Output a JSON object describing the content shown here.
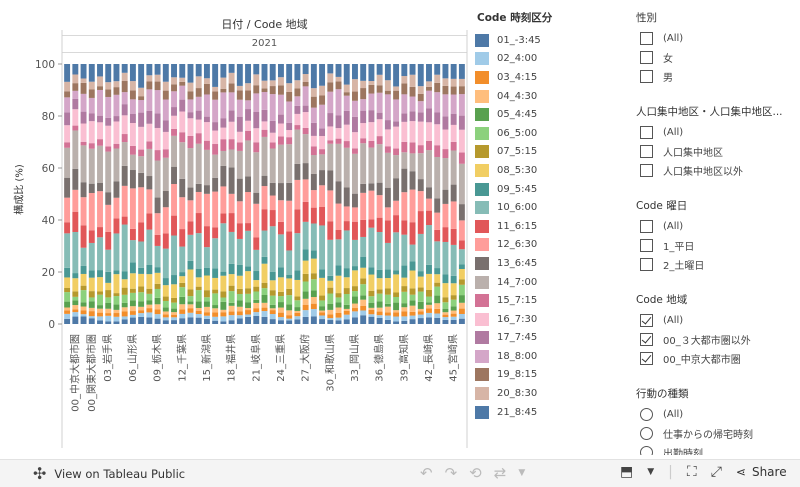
{
  "chart_data": {
    "type": "bar",
    "stacked": true,
    "title": "日付 / Code 地域",
    "year_label": "2021",
    "ylabel": "構成比 (%)",
    "ylim": [
      0,
      100
    ],
    "yticks": [
      0,
      20,
      40,
      60,
      80,
      100
    ],
    "bar_count": 49,
    "categories": [
      "00_中京大都市圏",
      "00_関東大都市圏",
      "03_岩手県",
      "06_山形県",
      "09_栃木県",
      "12_千葉県",
      "15_新潟県",
      "18_福井県",
      "21_岐阜県",
      "24_三重県",
      "27_大阪府",
      "30_和歌山県",
      "33_岡山県",
      "36_徳島県",
      "39_高知県",
      "42_長崎県",
      "45_宮崎県"
    ],
    "label_bar_index": [
      1,
      3,
      5,
      8,
      11,
      14,
      17,
      20,
      23,
      26,
      29,
      32,
      35,
      38,
      41,
      44,
      47
    ],
    "series_names": [
      "01_-3:45",
      "02_4:00",
      "03_4:15",
      "04_4:30",
      "05_4:45",
      "06_5:00",
      "07_5:15",
      "08_5:30",
      "09_5:45",
      "10_6:00",
      "11_6:15",
      "12_6:30",
      "13_6:45",
      "14_7:00",
      "15_7:15",
      "16_7:30",
      "17_7:45",
      "18_8:00",
      "19_8:15",
      "20_8:30",
      "21_8:45"
    ],
    "base_shares": [
      2,
      1.5,
      1.5,
      1.5,
      2,
      3,
      2,
      5,
      3,
      12,
      6,
      10,
      6,
      12,
      3,
      6,
      4,
      7,
      3,
      3,
      6
    ],
    "note": "approximate composition read from bars; last stack fills to 100"
  },
  "legend": {
    "title": "Code 時刻区分",
    "items": [
      {
        "label": "01_-3:45",
        "color": "#4e79a7"
      },
      {
        "label": "02_4:00",
        "color": "#a0cbe8"
      },
      {
        "label": "03_4:15",
        "color": "#f28e2b"
      },
      {
        "label": "04_4:30",
        "color": "#ffbe7d"
      },
      {
        "label": "05_4:45",
        "color": "#59a14f"
      },
      {
        "label": "06_5:00",
        "color": "#8cd17d"
      },
      {
        "label": "07_5:15",
        "color": "#b6992d"
      },
      {
        "label": "08_5:30",
        "color": "#f1ce63"
      },
      {
        "label": "09_5:45",
        "color": "#499894"
      },
      {
        "label": "10_6:00",
        "color": "#86bcb6"
      },
      {
        "label": "11_6:15",
        "color": "#e15759"
      },
      {
        "label": "12_6:30",
        "color": "#ff9d9a"
      },
      {
        "label": "13_6:45",
        "color": "#79706e"
      },
      {
        "label": "14_7:00",
        "color": "#bab0ac"
      },
      {
        "label": "15_7:15",
        "color": "#d37295"
      },
      {
        "label": "16_7:30",
        "color": "#fabfd2"
      },
      {
        "label": "17_7:45",
        "color": "#b07aa1"
      },
      {
        "label": "18_8:00",
        "color": "#d4a6c8"
      },
      {
        "label": "19_8:15",
        "color": "#9d7660"
      },
      {
        "label": "20_8:30",
        "color": "#d7b5a6"
      },
      {
        "label": "21_8:45",
        "color": "#4e79a7"
      }
    ]
  },
  "filters": {
    "gender": {
      "title": "性別",
      "options": [
        "(All)",
        "女",
        "男"
      ]
    },
    "did": {
      "title": "人口集中地区・人口集中地区...",
      "options": [
        "(All)",
        "人口集中地区",
        "人口集中地区以外"
      ]
    },
    "weekday": {
      "title": "Code 曜日",
      "options": [
        "(All)",
        "1_平日",
        "2_土曜日"
      ]
    },
    "region": {
      "title": "Code 地域",
      "options": [
        "(All)",
        "00_３大都市圏以外",
        "00_中京大都市圏"
      ]
    },
    "activity": {
      "title": "行動の種類",
      "options": [
        "(All)",
        "仕事からの帰宅時刻",
        "出勤時刻"
      ]
    }
  },
  "toolbar": {
    "view_label": "View on Tableau Public",
    "share_label": "Share"
  }
}
